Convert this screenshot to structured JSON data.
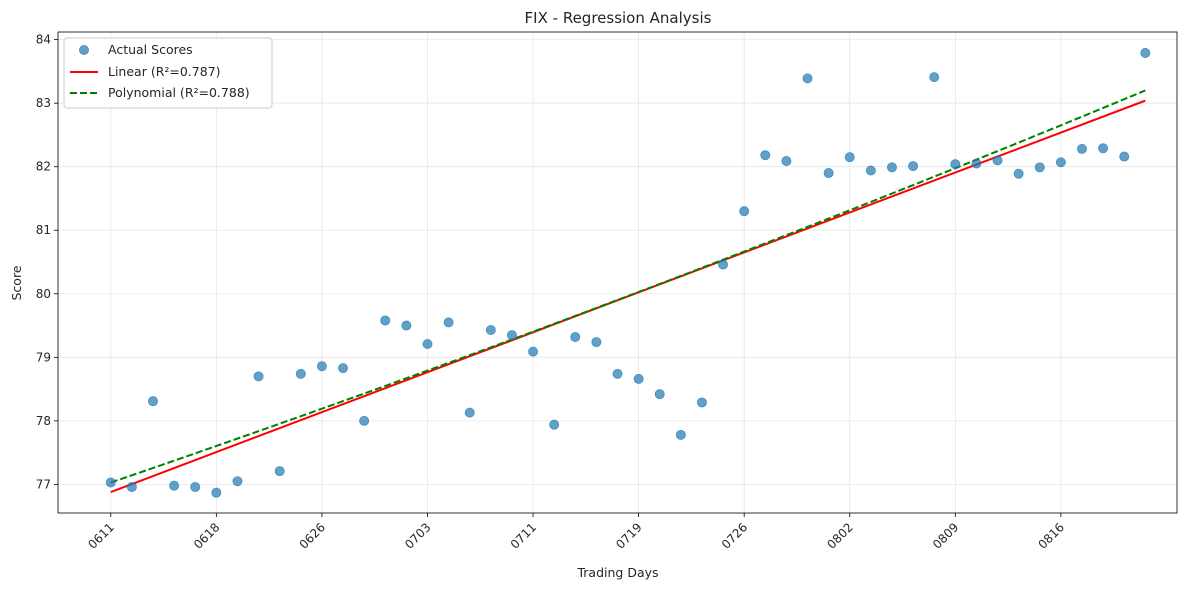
{
  "chart_data": {
    "type": "scatter",
    "title": "FIX - Regression Analysis",
    "xlabel": "Trading Days",
    "ylabel": "Score",
    "xlim": [
      -2.5,
      50.5
    ],
    "ylim": [
      76.55,
      84.12
    ],
    "grid": true,
    "legend_position": "top-left",
    "x_ticks": [
      {
        "x": 0,
        "label": "0611"
      },
      {
        "x": 5,
        "label": "0618"
      },
      {
        "x": 10,
        "label": "0626"
      },
      {
        "x": 15,
        "label": "0703"
      },
      {
        "x": 20,
        "label": "0711"
      },
      {
        "x": 25,
        "label": "0719"
      },
      {
        "x": 30,
        "label": "0726"
      },
      {
        "x": 35,
        "label": "0802"
      },
      {
        "x": 40,
        "label": "0809"
      },
      {
        "x": 45,
        "label": "0816"
      }
    ],
    "y_ticks": [
      77,
      78,
      79,
      80,
      81,
      82,
      83,
      84
    ],
    "series": [
      {
        "name": "Actual Scores",
        "kind": "scatter",
        "color": "#1f77b4",
        "y": [
          77.03,
          76.96,
          78.31,
          76.98,
          76.96,
          76.87,
          77.05,
          78.7,
          77.21,
          78.74,
          78.86,
          78.83,
          78.0,
          79.58,
          79.5,
          79.21,
          79.55,
          78.13,
          79.43,
          79.35,
          79.09,
          77.94,
          79.32,
          79.24,
          78.74,
          78.66,
          78.42,
          77.78,
          78.29,
          80.46,
          81.3,
          82.18,
          82.09,
          83.39,
          81.9,
          82.15,
          81.94,
          81.99,
          82.01,
          83.41,
          82.04,
          82.05,
          82.1,
          81.89,
          81.99,
          82.07,
          82.28,
          82.29,
          82.16,
          83.79
        ]
      },
      {
        "name": "Linear (R²=0.787)",
        "kind": "line",
        "color": "#ff0000",
        "dash": "solid",
        "x": [
          0,
          49
        ],
        "y": [
          76.88,
          83.04
        ]
      },
      {
        "name": "Polynomial (R²=0.788)",
        "kind": "line",
        "color": "#008000",
        "dash": "dashed",
        "x": [
          0,
          49
        ],
        "y": [
          77.03,
          83.2
        ],
        "quadratic": true
      }
    ]
  }
}
